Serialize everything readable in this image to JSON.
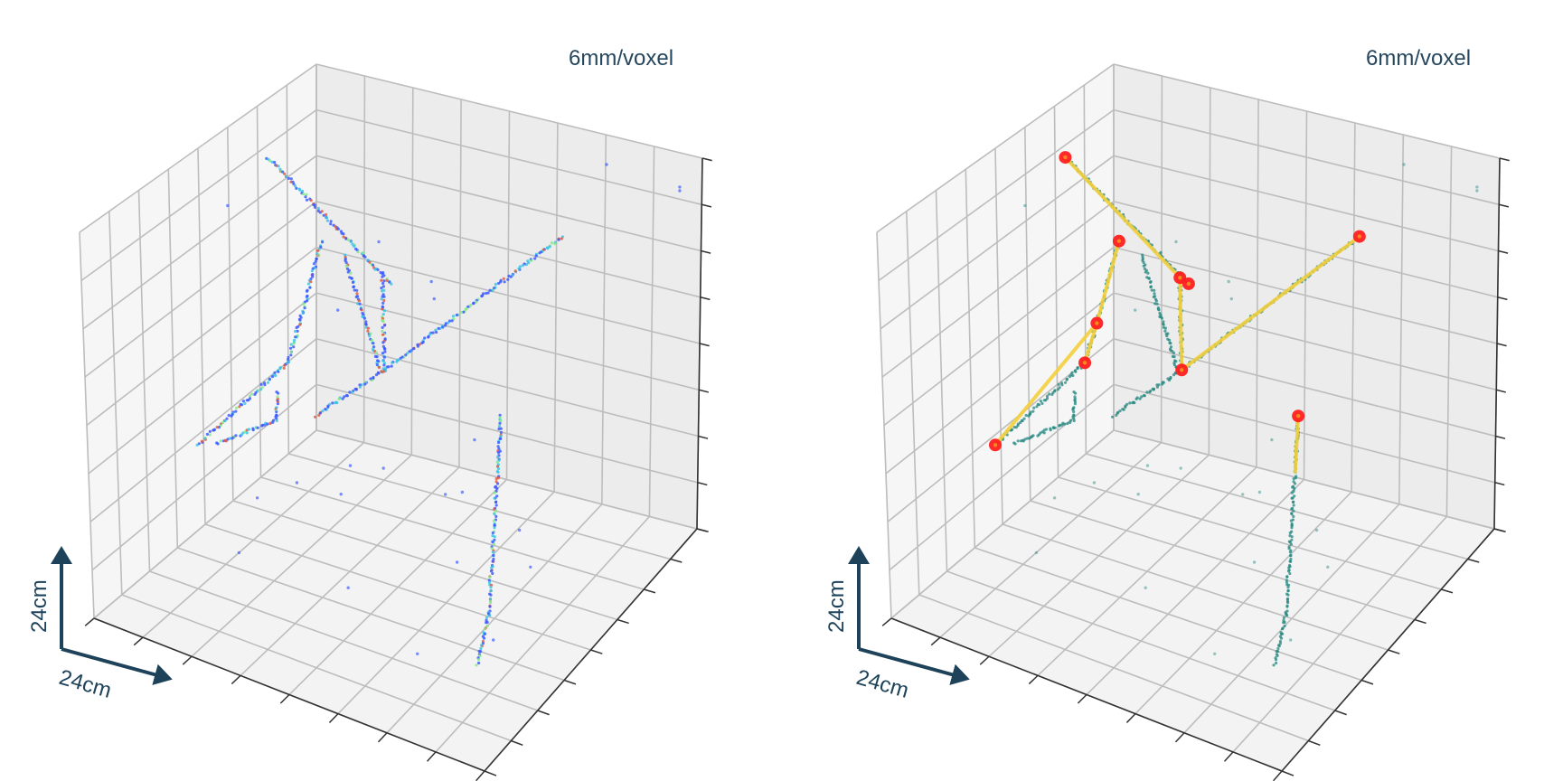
{
  "chart_data": [
    {
      "type": "scatter",
      "subtype": "3d-voxel-point-cloud",
      "title": "",
      "annotation": "6mm/voxel",
      "scale_bar": {
        "vertical": "24cm",
        "horizontal": "24cm"
      },
      "axis_range": {
        "x": [
          0,
          40
        ],
        "y": [
          0,
          40
        ],
        "z": [
          0,
          40
        ]
      },
      "grid": true,
      "tick_labels": "none",
      "point_colormap": "jet",
      "colors": {
        "points": "#3456ff",
        "points_alt": "#32c4e6",
        "points_alt2": "#7fe884",
        "points_hot": "#e0553a"
      },
      "tracks": [
        {
          "id": "A",
          "points": [
            [
              2.3,
              12,
              36.0
            ],
            [
              15.0,
              12,
              25.9
            ]
          ]
        },
        {
          "id": "B",
          "points": [
            [
              32.8,
              12,
              35.4
            ],
            [
              14.2,
              12,
              16.6
            ],
            [
              7.0,
              12,
              9.7
            ]
          ]
        },
        {
          "id": "C",
          "points": [
            [
              7.8,
              12,
              28.5
            ],
            [
              5.4,
              12,
              19.1
            ],
            [
              4.1,
              12,
              14.5
            ],
            [
              0.6,
              22,
              9.6
            ]
          ]
        },
        {
          "id": "D",
          "points": [
            [
              10.1,
              12,
              27.6
            ],
            [
              13.8,
              12,
              16.4
            ]
          ]
        },
        {
          "id": "E",
          "points": [
            [
              14.1,
              12,
              26.3
            ],
            [
              14.2,
              12,
              16.6
            ]
          ]
        },
        {
          "id": "F",
          "points": [
            [
              37.1,
              30,
              26.9
            ],
            [
              35.2,
              30,
              7.6
            ],
            [
              33.9,
              30,
              2.4
            ]
          ]
        },
        {
          "id": "G",
          "points": [
            [
              0.2,
              18,
              7.7
            ],
            [
              2.8,
              12,
              8.0
            ],
            [
              3.0,
              12,
              11.0
            ]
          ]
        }
      ],
      "outliers": [
        [
          30.1,
          0,
          36.8
        ],
        [
          37.7,
          0,
          36.3
        ],
        [
          37.7,
          0,
          35.9
        ],
        [
          6.5,
          0,
          22.3
        ],
        [
          12.0,
          0,
          19.4
        ],
        [
          12.3,
          0,
          17.6
        ],
        [
          16.6,
          0,
          3.4
        ],
        [
          0.5,
          16,
          32.2
        ],
        [
          9.4,
          12,
          21.6
        ],
        [
          6.0,
          4.2,
          0
        ],
        [
          8.9,
          3.2,
          0
        ],
        [
          3.3,
          9.2,
          0
        ],
        [
          7.8,
          9.0,
          0
        ],
        [
          1.6,
          13.4,
          0
        ],
        [
          16.2,
          4.6,
          0
        ],
        [
          17.4,
          3.6,
          0
        ],
        [
          25.2,
          6.8,
          0
        ],
        [
          5.0,
          22.6,
          0
        ],
        [
          16.2,
          22.4,
          0
        ],
        [
          26.6,
          28.2,
          0
        ],
        [
          29.0,
          11.5,
          0
        ],
        [
          22.7,
          13.9,
          0
        ],
        [
          31.5,
          22.9,
          0
        ]
      ]
    },
    {
      "type": "scatter",
      "subtype": "3d-voxel-point-cloud-with-graph",
      "title": "",
      "annotation": "6mm/voxel",
      "scale_bar": {
        "vertical": "24cm",
        "horizontal": "24cm"
      },
      "axis_range": {
        "x": [
          0,
          40
        ],
        "y": [
          0,
          40
        ],
        "z": [
          0,
          40
        ]
      },
      "grid": true,
      "tick_labels": "none",
      "colors": {
        "points": "#23877f",
        "edges": "#f4cf3c",
        "nodes": "#ff1f1f"
      },
      "tracks_same_as_panel": 0,
      "graph": {
        "nodes": [
          {
            "id": "N1",
            "pos": [
              2.3,
              12,
              36.0
            ]
          },
          {
            "id": "N2",
            "pos": [
              7.8,
              12,
              28.5
            ]
          },
          {
            "id": "N3",
            "pos": [
              14.1,
              12,
              26.3
            ]
          },
          {
            "id": "N3b",
            "pos": [
              15.0,
              12,
              25.9
            ]
          },
          {
            "id": "N4",
            "pos": [
              5.4,
              12,
              19.1
            ]
          },
          {
            "id": "N5",
            "pos": [
              4.1,
              12,
              14.5
            ]
          },
          {
            "id": "N6",
            "pos": [
              14.2,
              12,
              16.6
            ]
          },
          {
            "id": "N7",
            "pos": [
              0.6,
              22,
              9.6
            ]
          },
          {
            "id": "N8",
            "pos": [
              32.8,
              12,
              35.4
            ]
          },
          {
            "id": "N9",
            "pos": [
              37.1,
              30,
              26.9
            ]
          }
        ],
        "edges": [
          [
            "N1",
            "N3"
          ],
          [
            "N3",
            "N6"
          ],
          [
            "N6",
            "N8"
          ],
          [
            "N2",
            "N4"
          ],
          [
            "N4",
            "N5"
          ],
          [
            "N4",
            "N7"
          ],
          [
            "N9",
            "N9tail"
          ]
        ],
        "extra_points": {
          "N9tail": [
            36.6,
            30,
            21.5
          ]
        }
      }
    }
  ]
}
